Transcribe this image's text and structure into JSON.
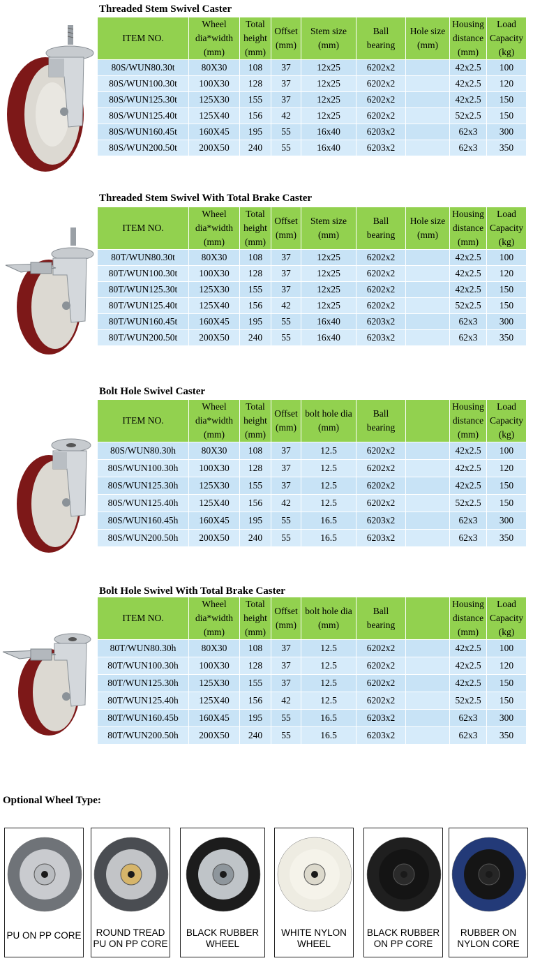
{
  "sections": [
    {
      "title": "Threaded Stem Swivel Caster",
      "headers": [
        "ITEM NO.",
        "Wheel\ndia*width\n(mm)",
        "Total\nheight\n(mm)",
        "Offset\n(mm)",
        "Stem size\n(mm)",
        "Ball\nbearing",
        "Hole size\n(mm)",
        "Housing\ndistance\n(mm)",
        "Load\nCapacity\n(kg)"
      ],
      "rows": [
        [
          "80S/WUN80.30t",
          "80X30",
          "108",
          "37",
          "12x25",
          "6202x2",
          "",
          "42x2.5",
          "100"
        ],
        [
          "80S/WUN100.30t",
          "100X30",
          "128",
          "37",
          "12x25",
          "6202x2",
          "",
          "42x2.5",
          "120"
        ],
        [
          "80S/WUN125.30t",
          "125X30",
          "155",
          "37",
          "12x25",
          "6202x2",
          "",
          "42x2.5",
          "150"
        ],
        [
          "80S/WUN125.40t",
          "125X40",
          "156",
          "42",
          "12x25",
          "6202x2",
          "",
          "52x2.5",
          "150"
        ],
        [
          "80S/WUN160.45t",
          "160X45",
          "195",
          "55",
          "16x40",
          "6203x2",
          "",
          "62x3",
          "300"
        ],
        [
          "80S/WUN200.50t",
          "200X50",
          "240",
          "55",
          "16x40",
          "6203x2",
          "",
          "62x3",
          "350"
        ]
      ]
    },
    {
      "title": "Threaded Stem Swivel With Total Brake Caster",
      "headers": [
        "ITEM NO.",
        "Wheel\ndia*width\n(mm)",
        "Total\nheight\n(mm)",
        "Offset\n(mm)",
        "Stem size\n(mm)",
        "Ball\nbearing",
        "Hole size\n(mm)",
        "Housing\ndistance\n(mm)",
        "Load\nCapacity\n(kg)"
      ],
      "rows": [
        [
          "80T/WUN80.30t",
          "80X30",
          "108",
          "37",
          "12x25",
          "6202x2",
          "",
          "42x2.5",
          "100"
        ],
        [
          "80T/WUN100.30t",
          "100X30",
          "128",
          "37",
          "12x25",
          "6202x2",
          "",
          "42x2.5",
          "120"
        ],
        [
          "80T/WUN125.30t",
          "125X30",
          "155",
          "37",
          "12x25",
          "6202x2",
          "",
          "42x2.5",
          "150"
        ],
        [
          "80T/WUN125.40t",
          "125X40",
          "156",
          "42",
          "12x25",
          "6202x2",
          "",
          "52x2.5",
          "150"
        ],
        [
          "80T/WUN160.45t",
          "160X45",
          "195",
          "55",
          "16x40",
          "6203x2",
          "",
          "62x3",
          "300"
        ],
        [
          "80T/WUN200.50t",
          "200X50",
          "240",
          "55",
          "16x40",
          "6203x2",
          "",
          "62x3",
          "350"
        ]
      ]
    },
    {
      "title": "Bolt Hole Swivel Caster",
      "headers": [
        "ITEM NO.",
        "Wheel\ndia*width\n(mm)",
        "Total\nheight\n(mm)",
        "Offset\n(mm)",
        "bolt hole dia\n(mm)",
        "Ball\nbearing",
        "",
        "Housing\ndistance\n(mm)",
        "Load\nCapacity\n(kg)"
      ],
      "rows": [
        [
          "80S/WUN80.30h",
          "80X30",
          "108",
          "37",
          "12.5",
          "6202x2",
          "",
          "42x2.5",
          "100"
        ],
        [
          "80S/WUN100.30h",
          "100X30",
          "128",
          "37",
          "12.5",
          "6202x2",
          "",
          "42x2.5",
          "120"
        ],
        [
          "80S/WUN125.30h",
          "125X30",
          "155",
          "37",
          "12.5",
          "6202x2",
          "",
          "42x2.5",
          "150"
        ],
        [
          "80S/WUN125.40h",
          "125X40",
          "156",
          "42",
          "12.5",
          "6202x2",
          "",
          "52x2.5",
          "150"
        ],
        [
          "80S/WUN160.45h",
          "160X45",
          "195",
          "55",
          "16.5",
          "6203x2",
          "",
          "62x3",
          "300"
        ],
        [
          "80S/WUN200.50h",
          "200X50",
          "240",
          "55",
          "16.5",
          "6203x2",
          "",
          "62x3",
          "350"
        ]
      ]
    },
    {
      "title": "Bolt Hole Swivel With Total Brake Caster",
      "headers": [
        "ITEM NO.",
        "Wheel\ndia*width\n(mm)",
        "Total\nheight\n(mm)",
        "Offset\n(mm)",
        "bolt hole dia\n(mm)",
        "Ball\nbearing",
        "",
        "Housing\ndistance\n(mm)",
        "Load\nCapacity\n(kg)"
      ],
      "rows": [
        [
          "80T/WUN80.30h",
          "80X30",
          "108",
          "37",
          "12.5",
          "6202x2",
          "",
          "42x2.5",
          "100"
        ],
        [
          "80T/WUN100.30h",
          "100X30",
          "128",
          "37",
          "12.5",
          "6202x2",
          "",
          "42x2.5",
          "120"
        ],
        [
          "80T/WUN125.30h",
          "125X30",
          "155",
          "37",
          "12.5",
          "6202x2",
          "",
          "42x2.5",
          "150"
        ],
        [
          "80T/WUN125.40h",
          "125X40",
          "156",
          "42",
          "12.5",
          "6202x2",
          "",
          "52x2.5",
          "150"
        ],
        [
          "80T/WUN160.45b",
          "160X45",
          "195",
          "55",
          "16.5",
          "6203x2",
          "",
          "62x3",
          "300"
        ],
        [
          "80T/WUN200.50h",
          "200X50",
          "240",
          "55",
          "16.5",
          "6203x2",
          "",
          "62x3",
          "350"
        ]
      ]
    }
  ],
  "optional": {
    "title": "Optional Wheel Type:",
    "wheels": [
      {
        "label": "PU ON PP CORE",
        "tread": "#6f7378",
        "core": "#c9cbcf",
        "hub": "#b9bcc0"
      },
      {
        "label": "ROUND TREAD PU ON PP CORE",
        "tread": "#4a4d52",
        "core": "#c2c4c7",
        "hub": "#d6b56a"
      },
      {
        "label": "BLACK RUBBER WHEEL",
        "tread": "#1c1c1c",
        "core": "#bfc4c8",
        "hub": "#8e969c"
      },
      {
        "label": "WHITE NYLON WHEEL",
        "tread": "#eeece2",
        "core": "#f5f3ea",
        "hub": "#dcd9cc"
      },
      {
        "label": "BLACK RUBBER ON PP CORE",
        "tread": "#1f1f1f",
        "core": "#141414",
        "hub": "#2a2a2a"
      },
      {
        "label": "RUBBER ON NYLON CORE",
        "tread": "#233a78",
        "core": "#151515",
        "hub": "#262626"
      }
    ]
  },
  "colors": {
    "header_green": "#92d14f",
    "row_blue": "#c8e3f6",
    "row_blue_alt": "#d6ebfa",
    "wheel_red": "#8a1c1c",
    "wheel_core": "#d9d7d1"
  }
}
